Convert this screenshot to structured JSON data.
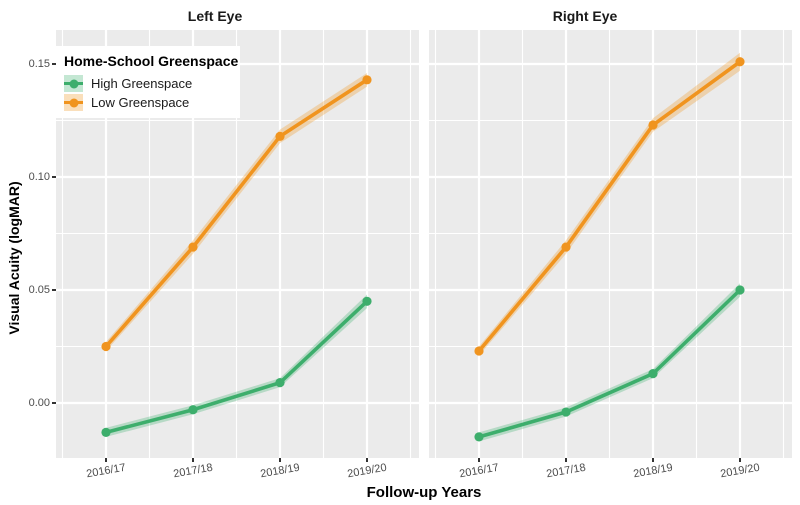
{
  "figure": {
    "y_axis_title": "Visual Acuity (logMAR)",
    "x_axis_title": "Follow-up Years",
    "y_tick_labels": [
      "0.15",
      "0.10",
      "0.05",
      "0.00"
    ],
    "x_tick_labels": [
      "2016/17",
      "2017/18",
      "2018/19",
      "2019/20"
    ]
  },
  "legend": {
    "title": "Home-School Greenspace",
    "items": [
      {
        "label": "High Greenspace",
        "color": "#3DAE6C"
      },
      {
        "label": "Low Greenspace",
        "color": "#F0941F"
      }
    ]
  },
  "colors": {
    "panel_background": "#EBEBEB",
    "gridline": "#FFFFFF",
    "tick_text": "#4D4D4D",
    "tick_mark": "#333333",
    "high_greenspace": "#3DAE6C",
    "low_greenspace": "#F0941F",
    "ribbon_alpha": 0.3
  },
  "chart_data": {
    "type": "line",
    "categories": [
      "2016/17",
      "2017/18",
      "2018/19",
      "2019/20"
    ],
    "xlabel": "Follow-up Years",
    "ylabel": "Visual Acuity (logMAR)",
    "ylim": [
      -0.024,
      0.165
    ],
    "y_major_ticks": [
      0.0,
      0.05,
      0.1,
      0.15
    ],
    "y_minor_ticks": [
      0.025,
      0.075,
      0.125
    ],
    "grid": true,
    "legend_position": "inside-top-left",
    "facets": [
      {
        "title": "Left Eye",
        "series": [
          {
            "name": "High Greenspace",
            "color": "#3DAE6C",
            "values": [
              -0.013,
              -0.003,
              0.009,
              0.045
            ],
            "ci_halfwidth": [
              0.002,
              0.002,
              0.002,
              0.003
            ]
          },
          {
            "name": "Low Greenspace",
            "color": "#F0941F",
            "values": [
              0.025,
              0.069,
              0.118,
              0.143
            ],
            "ci_halfwidth": [
              0.002,
              0.003,
              0.003,
              0.003
            ]
          }
        ]
      },
      {
        "title": "Right Eye",
        "series": [
          {
            "name": "High Greenspace",
            "color": "#3DAE6C",
            "values": [
              -0.015,
              -0.004,
              0.013,
              0.05
            ],
            "ci_halfwidth": [
              0.002,
              0.002,
              0.002,
              0.003
            ]
          },
          {
            "name": "Low Greenspace",
            "color": "#F0941F",
            "values": [
              0.023,
              0.069,
              0.123,
              0.151
            ],
            "ci_halfwidth": [
              0.002,
              0.003,
              0.003,
              0.004
            ]
          }
        ]
      }
    ]
  }
}
